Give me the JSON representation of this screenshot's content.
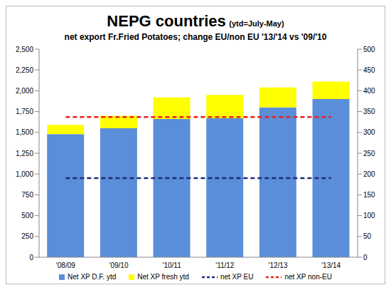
{
  "chart_data": {
    "type": "bar",
    "title": "NEPG countries",
    "title_note": "(ytd=July-May)",
    "subtitle": "net export Fr.Fried Potatoes; change EU/non EU '13/'14 vs '09/'10",
    "categories": [
      "'08/09",
      "'09/10",
      "'10/11",
      "'11/12",
      "'12/13",
      "'13/14"
    ],
    "stacked": true,
    "grid": false,
    "legend": "bottom",
    "ylim": [
      0,
      2500
    ],
    "yticks": [
      0,
      250,
      500,
      750,
      {
        "value": 1000,
        "label": "1,000"
      },
      {
        "value": 1250,
        "label": "1,250"
      },
      {
        "value": 1500,
        "label": "1,500"
      },
      {
        "value": 1750,
        "label": "1,750"
      },
      {
        "value": 2000,
        "label": "2,000"
      },
      {
        "value": 2250,
        "label": "2,250"
      },
      {
        "value": 2500,
        "label": "2,500"
      }
    ],
    "y2lim": [
      0,
      500
    ],
    "y2ticks": [
      0,
      50,
      100,
      150,
      200,
      250,
      300,
      350,
      400,
      450,
      500
    ],
    "series": [
      {
        "name": "Net XP D.F. ytd",
        "type": "bar",
        "color": "#5b8ed8",
        "values": [
          1480,
          1550,
          1660,
          1670,
          1800,
          1900
        ]
      },
      {
        "name": "Net XP fresh ytd",
        "type": "bar",
        "color": "#ffff00",
        "values": [
          110,
          150,
          260,
          280,
          240,
          210
        ]
      },
      {
        "name": "net XP EU",
        "type": "line",
        "line_style": "dashed",
        "axis": "y2",
        "color": "#1f2a78",
        "values": [
          190,
          190,
          190,
          190,
          190,
          190
        ]
      },
      {
        "name": "net XP non-EU",
        "type": "line",
        "line_style": "dashed",
        "axis": "y2",
        "color": "#e8221b",
        "values": [
          337,
          337,
          337,
          337,
          337,
          337
        ]
      }
    ]
  }
}
